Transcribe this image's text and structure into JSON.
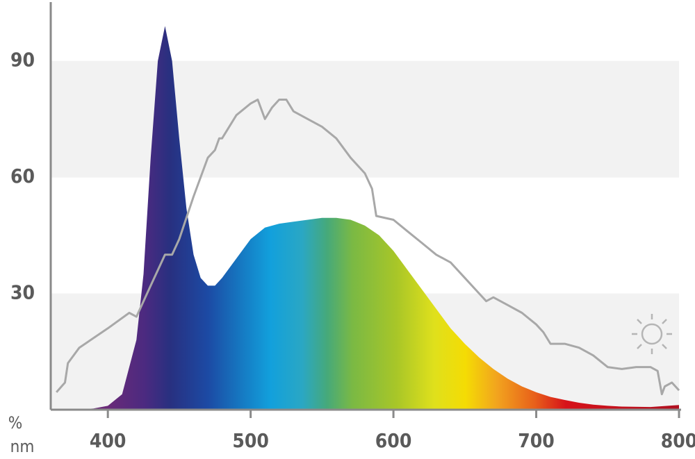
{
  "chart_data": {
    "type": "line",
    "x_label": "nm",
    "y_label": "%",
    "xlim": [
      360,
      800
    ],
    "ylim": [
      0,
      105
    ],
    "xticks": [
      400,
      500,
      600,
      700,
      800
    ],
    "yticks": [
      30,
      60,
      90
    ],
    "grid": "bands",
    "series": [
      {
        "fill": true,
        "x": [
          360,
          380,
          390,
          400,
          410,
          420,
          425,
          430,
          435,
          440,
          445,
          450,
          455,
          460,
          465,
          470,
          475,
          480,
          490,
          500,
          510,
          520,
          530,
          540,
          550,
          560,
          570,
          580,
          590,
          600,
          610,
          620,
          630,
          640,
          650,
          660,
          670,
          680,
          690,
          700,
          710,
          720,
          730,
          740,
          750,
          760,
          780,
          800
        ],
        "values": [
          0,
          0.1,
          0.3,
          1,
          4,
          18,
          35,
          65,
          90,
          99,
          90,
          70,
          52,
          40,
          34,
          32,
          32,
          34,
          39,
          44,
          47,
          48,
          48.5,
          49,
          49.5,
          49.5,
          49,
          47.5,
          45,
          41,
          36,
          31,
          26,
          21,
          17,
          13.5,
          10.5,
          8,
          6,
          4.5,
          3.3,
          2.5,
          1.8,
          1.3,
          1,
          0.8,
          0.7,
          1.2
        ]
      },
      {
        "color": "#a8a8a8",
        "x": [
          364,
          370,
          372,
          380,
          400,
          415,
          420,
          430,
          440,
          445,
          450,
          460,
          470,
          475,
          478,
          480,
          490,
          500,
          505,
          510,
          515,
          520,
          525,
          530,
          540,
          550,
          560,
          570,
          580,
          585,
          588,
          600,
          610,
          620,
          630,
          640,
          650,
          660,
          665,
          670,
          680,
          690,
          700,
          705,
          710,
          720,
          730,
          740,
          750,
          760,
          770,
          780,
          785,
          788,
          790,
          795,
          800
        ],
        "values": [
          4.5,
          7,
          12,
          16,
          21,
          25,
          24,
          32,
          40,
          40,
          44,
          55,
          65,
          67,
          70,
          70,
          76,
          79,
          80,
          75,
          78,
          80,
          80,
          77,
          75,
          73,
          70,
          65,
          61,
          57,
          50,
          49,
          46,
          43,
          40,
          38,
          34,
          30,
          28,
          29,
          27,
          25,
          22,
          20,
          17,
          17,
          16,
          14,
          11,
          10.5,
          11,
          11,
          10,
          4,
          6,
          7,
          5
        ]
      }
    ]
  }
}
